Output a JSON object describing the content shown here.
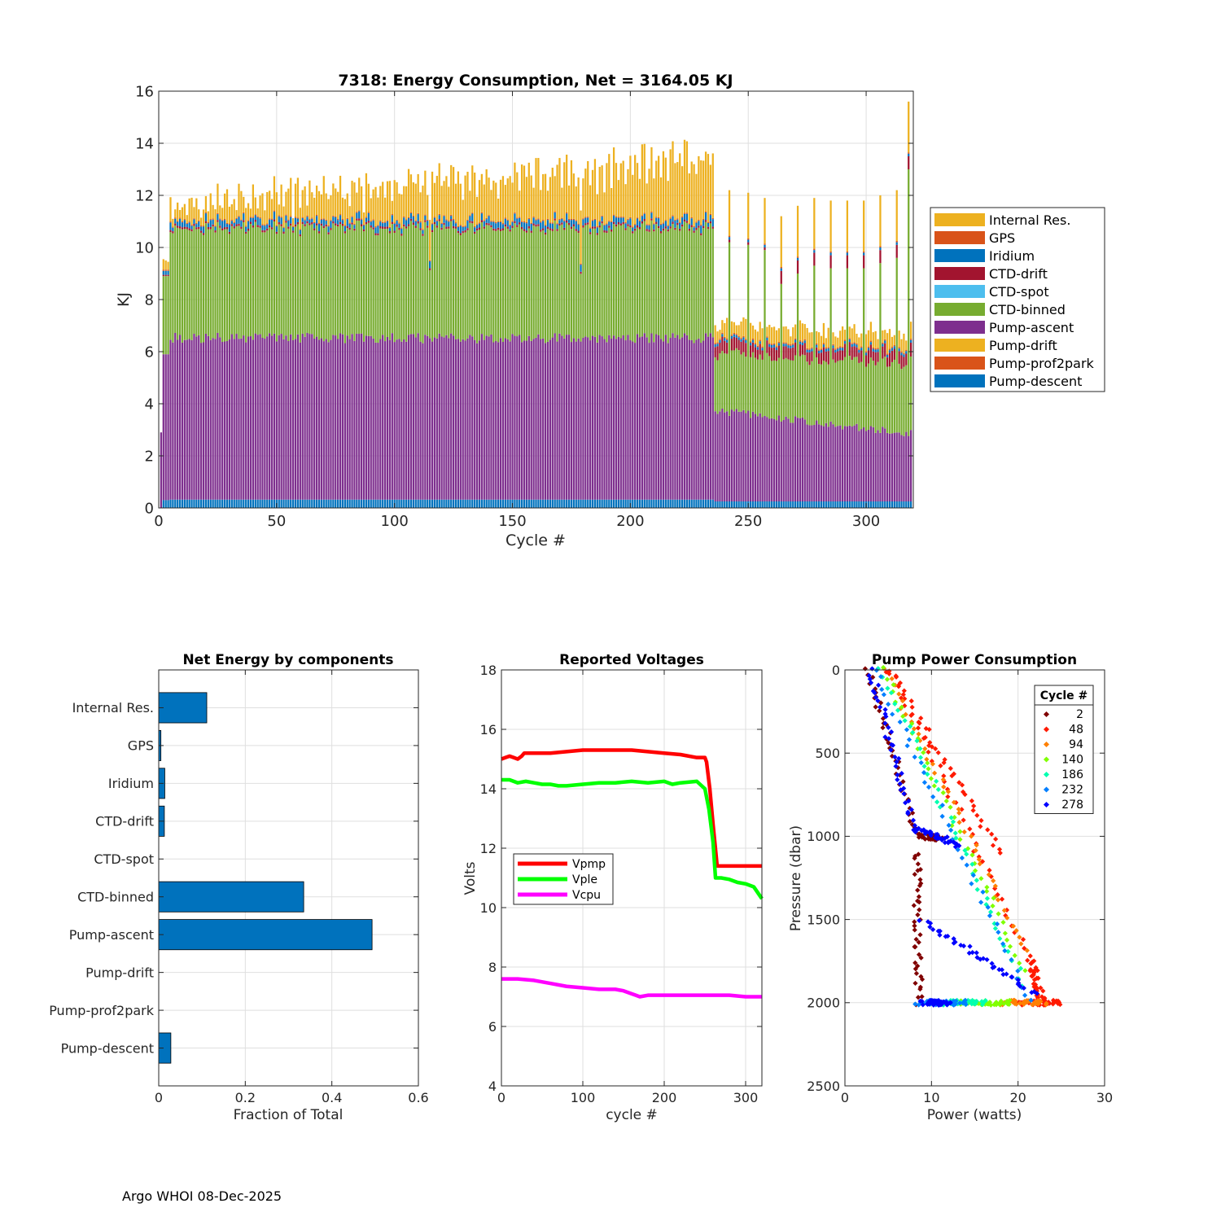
{
  "footer": "Argo WHOI 08-Dec-2025",
  "chart_data": [
    {
      "type": "stacked-bar",
      "title": "7318: Energy Consumption,  Net = 3164.05 KJ",
      "xlabel": "Cycle #",
      "ylabel": "KJ",
      "xlim": [
        0,
        320
      ],
      "ylim": [
        0,
        16
      ],
      "xticks": [
        0,
        50,
        100,
        150,
        200,
        250,
        300
      ],
      "yticks": [
        0,
        2,
        4,
        6,
        8,
        10,
        12,
        14,
        16
      ],
      "grid": true,
      "legend_position": "outside-right",
      "legend": [
        "Internal Res.",
        "GPS",
        "Iridium",
        "CTD-drift",
        "CTD-spot",
        "CTD-binned",
        "Pump-ascent",
        "Pump-drift",
        "Pump-prof2park",
        "Pump-descent"
      ],
      "legend_colors": [
        "#EDB120",
        "#D95319",
        "#0072BD",
        "#A2142F",
        "#4DBEEE",
        "#77AC30",
        "#7E2F8E",
        "#EDB120",
        "#D95319",
        "#0072BD"
      ],
      "stack_order_bottom_to_top": [
        "Pump-descent",
        "Pump-prof2park",
        "Pump-drift",
        "Pump-ascent",
        "CTD-binned",
        "CTD-spot",
        "CTD-drift",
        "Iridium",
        "GPS",
        "Internal Res."
      ],
      "series_profiles": {
        "cycle_1": {
          "Pump-descent": 0.0,
          "Pump-ascent": 3.0,
          "CTD-binned": 0,
          "Internal Res.": 0
        },
        "cycle_5": {
          "Pump-descent": 0.3,
          "Pump-ascent": 5.6,
          "CTD-binned": 3.0,
          "CTD-drift": 0.05,
          "Iridium": 0.2,
          "GPS": 0.05,
          "Internal Res.": 0.6
        },
        "cycle_10_to_235": {
          "Pump-descent": 0.32,
          "Pump-ascent": 6.3,
          "CTD-binned": 4.2,
          "CTD-drift": 0.1,
          "Iridium": 0.2,
          "GPS": 0.05,
          "Internal Res.": "0.6 to 2.7"
        },
        "cycle_236_to_320": {
          "Pump-descent": 0.25,
          "Pump-ascent": "3.6 to 2.6",
          "CTD-binned": "2.2 to 2.7",
          "CTD-drift": 0.4,
          "Iridium": 0.1,
          "GPS": 0.05,
          "Internal Res.": 0.6
        }
      },
      "tall_bars_after_236": [
        {
          "cycle": 242,
          "total": 12.2
        },
        {
          "cycle": 250,
          "total": 12.1
        },
        {
          "cycle": 257,
          "total": 11.9
        },
        {
          "cycle": 264,
          "total": 11.2
        },
        {
          "cycle": 271,
          "total": 11.6
        },
        {
          "cycle": 278,
          "total": 11.9
        },
        {
          "cycle": 285,
          "total": 11.8
        },
        {
          "cycle": 292,
          "total": 11.8
        },
        {
          "cycle": 299,
          "total": 11.8
        },
        {
          "cycle": 306,
          "total": 12.0
        },
        {
          "cycle": 313,
          "total": 12.2
        },
        {
          "cycle": 318,
          "total": 15.6
        }
      ]
    },
    {
      "type": "bar-horizontal",
      "title": "Net Energy by components",
      "xlabel": "Fraction of Total",
      "xlim": [
        0,
        0.6
      ],
      "xticks": [
        0,
        0.2,
        0.4,
        0.6
      ],
      "xtick_labels": [
        "0",
        "0.2",
        "0.4",
        "0.6"
      ],
      "grid": true,
      "categories": [
        "Internal Res.",
        "GPS",
        "Iridium",
        "CTD-drift",
        "CTD-spot",
        "CTD-binned",
        "Pump-ascent",
        "Pump-drift",
        "Pump-prof2park",
        "Pump-descent"
      ],
      "values": [
        0.111,
        0.005,
        0.014,
        0.013,
        0.0,
        0.335,
        0.493,
        0.0,
        0.0,
        0.028
      ],
      "color": "#0072BD"
    },
    {
      "type": "line",
      "title": "Reported Voltages",
      "xlabel": "cycle #",
      "ylabel": "Volts",
      "xlim": [
        0,
        320
      ],
      "ylim": [
        4,
        18
      ],
      "xticks": [
        0,
        100,
        200,
        300
      ],
      "yticks": [
        4,
        6,
        8,
        10,
        12,
        14,
        16,
        18
      ],
      "grid": true,
      "legend_position": "middle-left",
      "series": [
        {
          "name": "Vpmp",
          "color": "#FF0000",
          "x": [
            0,
            5,
            10,
            15,
            20,
            25,
            28,
            30,
            40,
            60,
            80,
            100,
            120,
            140,
            160,
            180,
            200,
            220,
            240,
            250,
            252,
            256,
            260,
            265,
            270,
            290,
            310,
            320
          ],
          "y": [
            15.0,
            15.05,
            15.1,
            15.05,
            15.0,
            15.1,
            15.2,
            15.2,
            15.2,
            15.2,
            15.25,
            15.3,
            15.3,
            15.3,
            15.3,
            15.25,
            15.2,
            15.15,
            15.05,
            15.05,
            14.9,
            14.0,
            12.8,
            11.4,
            11.4,
            11.4,
            11.4,
            11.4
          ]
        },
        {
          "name": "Vple",
          "color": "#00FF00",
          "x": [
            0,
            10,
            20,
            30,
            40,
            50,
            60,
            70,
            80,
            100,
            120,
            140,
            160,
            180,
            200,
            210,
            220,
            240,
            250,
            255,
            260,
            263,
            270,
            280,
            290,
            300,
            310,
            320
          ],
          "y": [
            14.3,
            14.3,
            14.2,
            14.25,
            14.2,
            14.15,
            14.15,
            14.1,
            14.1,
            14.15,
            14.2,
            14.2,
            14.25,
            14.2,
            14.25,
            14.15,
            14.2,
            14.25,
            14.0,
            13.3,
            12.2,
            11.0,
            11.0,
            10.95,
            10.85,
            10.8,
            10.7,
            10.3
          ]
        },
        {
          "name": "Vcpu",
          "color": "#FF00FF",
          "x": [
            0,
            20,
            40,
            60,
            80,
            100,
            120,
            140,
            150,
            160,
            165,
            170,
            180,
            200,
            220,
            240,
            260,
            280,
            300,
            320
          ],
          "y": [
            7.6,
            7.6,
            7.55,
            7.45,
            7.35,
            7.3,
            7.25,
            7.25,
            7.2,
            7.1,
            7.05,
            7.0,
            7.05,
            7.05,
            7.05,
            7.05,
            7.05,
            7.05,
            7.0,
            7.0
          ]
        }
      ]
    },
    {
      "type": "scatter",
      "title": "Pump Power Consumption",
      "xlabel": "Power (watts)",
      "ylabel": "Pressure (dbar)",
      "xlim": [
        0,
        30
      ],
      "ylim": [
        0,
        2500
      ],
      "y_reversed": true,
      "xticks": [
        0,
        10,
        20,
        30
      ],
      "yticks": [
        0,
        500,
        1000,
        1500,
        2000,
        2500
      ],
      "grid": true,
      "legend_title": "Cycle #",
      "legend_position": "top-right",
      "series": [
        {
          "name": "2",
          "color": "#800000",
          "branches": [
            {
              "x": [
                2.6,
                8.5
              ],
              "y": [
                0,
                1000
              ]
            },
            {
              "x": [
                8.5,
                11.0
              ],
              "y": [
                1000,
                1010
              ]
            },
            {
              "x": [
                8.3,
                8.6
              ],
              "y": [
                1100,
                2000
              ]
            }
          ]
        },
        {
          "name": "48",
          "color": "#FF1A00",
          "branches": [
            {
              "x": [
                5.0,
                18.0
              ],
              "y": [
                0,
                1100
              ]
            },
            {
              "x": [
                5.2,
                21.5
              ],
              "y": [
                0,
                1750
              ]
            },
            {
              "x": [
                21.5,
                22.8
              ],
              "y": [
                1750,
                2000
              ]
            },
            {
              "x": [
                20.0,
                25.0
              ],
              "y": [
                2000,
                2000
              ]
            }
          ]
        },
        {
          "name": "94",
          "color": "#FF8000",
          "branches": [
            {
              "x": [
                4.8,
                21.0
              ],
              "y": [
                0,
                1700
              ]
            },
            {
              "x": [
                18.0,
                23.0
              ],
              "y": [
                2000,
                2000
              ]
            }
          ]
        },
        {
          "name": "140",
          "color": "#80FF00",
          "branches": [
            {
              "x": [
                4.5,
                20.5
              ],
              "y": [
                0,
                1800
              ]
            },
            {
              "x": [
                13.0,
                19.0
              ],
              "y": [
                2000,
                2000
              ]
            }
          ]
        },
        {
          "name": "186",
          "color": "#00FFB0",
          "branches": [
            {
              "x": [
                4.2,
                20.8
              ],
              "y": [
                0,
                1900
              ]
            },
            {
              "x": [
                10.0,
                16.0
              ],
              "y": [
                2000,
                2000
              ]
            }
          ]
        },
        {
          "name": "232",
          "color": "#007FFF",
          "branches": [
            {
              "x": [
                3.5,
                21.5
              ],
              "y": [
                0,
                2000
              ]
            },
            {
              "x": [
                8.5,
                14.0
              ],
              "y": [
                2000,
                2000
              ]
            }
          ]
        },
        {
          "name": "278",
          "color": "#0000FF",
          "branches": [
            {
              "x": [
                3.0,
                8.0
              ],
              "y": [
                0,
                950
              ]
            },
            {
              "x": [
                8.0,
                13.0
              ],
              "y": [
                950,
                1050
              ]
            },
            {
              "x": [
                9.0,
                22.0
              ],
              "y": [
                1500,
                1950
              ]
            },
            {
              "x": [
                9.0,
                12.0
              ],
              "y": [
                2000,
                2000
              ]
            }
          ]
        }
      ]
    }
  ]
}
